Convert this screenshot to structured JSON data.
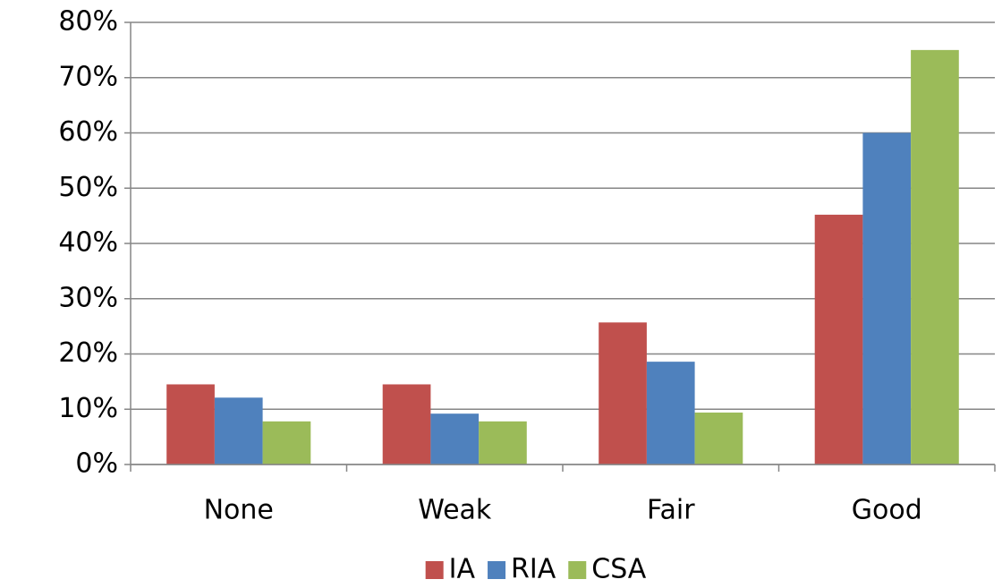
{
  "chart_data": {
    "type": "bar",
    "categories": [
      "None",
      "Weak",
      "Fair",
      "Good"
    ],
    "series": [
      {
        "name": "IA",
        "color": "#c0504d",
        "values": [
          14.5,
          14.5,
          25.7,
          45.2
        ]
      },
      {
        "name": "RIA",
        "color": "#4f81bd",
        "values": [
          12.1,
          9.2,
          18.6,
          60
        ]
      },
      {
        "name": "CSA",
        "color": "#9bbb59",
        "values": [
          7.8,
          7.8,
          9.4,
          75
        ]
      }
    ],
    "ylim": [
      0,
      80
    ],
    "yticks": [
      {
        "value": 0,
        "label": "0%"
      },
      {
        "value": 10,
        "label": "10%"
      },
      {
        "value": 20,
        "label": "20%"
      },
      {
        "value": 30,
        "label": "30%"
      },
      {
        "value": 40,
        "label": "40%"
      },
      {
        "value": 50,
        "label": "50%"
      },
      {
        "value": 60,
        "label": "60%"
      },
      {
        "value": 70,
        "label": "70%"
      },
      {
        "value": 80,
        "label": "80%"
      }
    ],
    "grid": true,
    "legend": "bottom"
  }
}
